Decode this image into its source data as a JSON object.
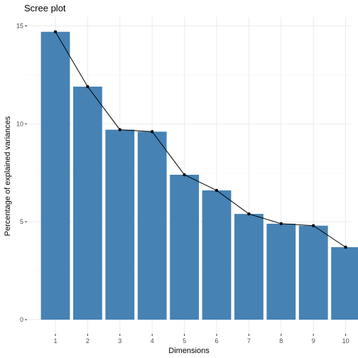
{
  "chart_data": {
    "type": "bar",
    "title": "Scree plot",
    "xlabel": "Dimensions",
    "ylabel": "Percentage of explained variances",
    "categories": [
      "1",
      "2",
      "3",
      "4",
      "5",
      "6",
      "7",
      "8",
      "9",
      "10"
    ],
    "values": [
      14.7,
      11.9,
      9.7,
      9.6,
      7.4,
      6.6,
      5.4,
      4.9,
      4.8,
      3.7
    ],
    "ylim": [
      0,
      15.3
    ],
    "yticks": [
      0,
      5,
      10,
      15
    ],
    "grid": true,
    "legend": "none",
    "colors": {
      "bar": "#4682b4",
      "line": "#000000",
      "point": "#000000",
      "grid": "#ebebeb"
    },
    "overlay": {
      "type": "line",
      "values": [
        14.7,
        11.9,
        9.7,
        9.6,
        7.4,
        6.6,
        5.4,
        4.9,
        4.8,
        3.7
      ],
      "markers": true
    }
  }
}
